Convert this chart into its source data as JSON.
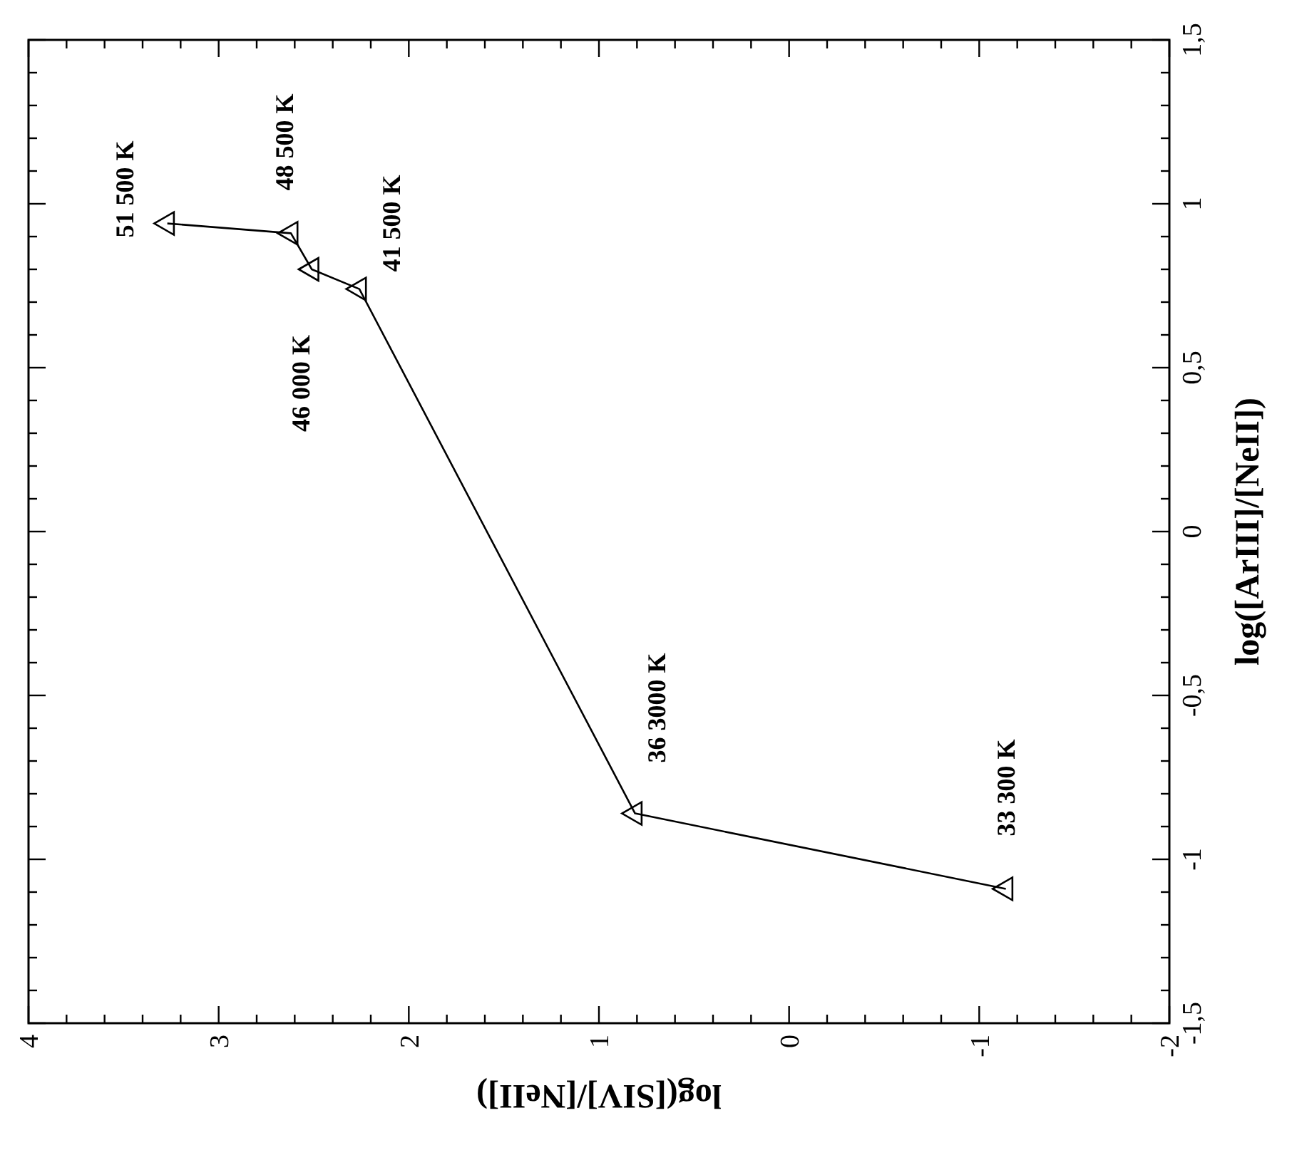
{
  "chart_data": {
    "type": "line",
    "xlabel": "log([SIV]/[NeII])",
    "ylabel": "log([ArIII]/[NeII])",
    "xlim": [
      4,
      -2
    ],
    "ylim": [
      -1.5,
      1.5
    ],
    "yticks": [
      {
        "value": -1.5,
        "label": "-1,5"
      },
      {
        "value": -1.4,
        "label": null
      },
      {
        "value": -1.3,
        "label": null
      },
      {
        "value": -1.2,
        "label": null
      },
      {
        "value": -1.1,
        "label": null
      },
      -1,
      {
        "value": -0.9,
        "label": null
      },
      {
        "value": -0.8,
        "label": null
      },
      {
        "value": -0.7,
        "label": null
      },
      {
        "value": -0.6,
        "label": null
      },
      {
        "value": -0.5,
        "label": "-0,5"
      },
      {
        "value": -0.4,
        "label": null
      },
      {
        "value": -0.3,
        "label": null
      },
      {
        "value": -0.2,
        "label": null
      },
      {
        "value": -0.1,
        "label": null
      },
      0,
      {
        "value": 0.1,
        "label": null
      },
      {
        "value": 0.2,
        "label": null
      },
      {
        "value": 0.3,
        "label": null
      },
      {
        "value": 0.4,
        "label": null
      },
      {
        "value": 0.5,
        "label": "0,5"
      },
      {
        "value": 0.6,
        "label": null
      },
      {
        "value": 0.7,
        "label": null
      },
      {
        "value": 0.8,
        "label": null
      },
      {
        "value": 0.9,
        "label": null
      },
      1,
      {
        "value": 1.1,
        "label": null
      },
      {
        "value": 1.2,
        "label": null
      },
      {
        "value": 1.3,
        "label": null
      },
      {
        "value": 1.4,
        "label": null
      },
      {
        "value": 1.5,
        "label": "1,5"
      }
    ],
    "xticks": [
      4,
      {
        "value": 3.8,
        "label": null
      },
      {
        "value": 3.6,
        "label": null
      },
      {
        "value": 3.4,
        "label": null
      },
      {
        "value": 3.2,
        "label": null
      },
      3,
      {
        "value": 2.8,
        "label": null
      },
      {
        "value": 2.6,
        "label": null
      },
      {
        "value": 2.4,
        "label": null
      },
      {
        "value": 2.2,
        "label": null
      },
      2,
      {
        "value": 1.8,
        "label": null
      },
      {
        "value": 1.6,
        "label": null
      },
      {
        "value": 1.4,
        "label": null
      },
      {
        "value": 1.2,
        "label": null
      },
      1,
      {
        "value": 0.8,
        "label": null
      },
      {
        "value": 0.6,
        "label": null
      },
      {
        "value": 0.4,
        "label": null
      },
      {
        "value": 0.2,
        "label": null
      },
      0,
      {
        "value": -0.2,
        "label": null
      },
      {
        "value": -0.4,
        "label": null
      },
      {
        "value": -0.6,
        "label": null
      },
      {
        "value": -0.8,
        "label": null
      },
      -1,
      {
        "value": -1.2,
        "label": null
      },
      {
        "value": -1.4,
        "label": null
      },
      {
        "value": -1.6,
        "label": null
      },
      {
        "value": -1.8,
        "label": null
      },
      -2
    ],
    "grid": false,
    "marker": "triangle",
    "line_style": "solid",
    "series": [
      {
        "color": "#000000",
        "x": [
          3.27,
          2.62,
          2.51,
          2.26,
          0.81,
          -1.14
        ],
        "values": [
          0.94,
          0.91,
          0.8,
          0.74,
          -0.86,
          -1.09
        ]
      }
    ],
    "annotations": [
      {
        "text": "51 500 K",
        "x": 3.27,
        "y": 0.94
      },
      {
        "text": "48 500 K",
        "x": 2.62,
        "y": 0.91
      },
      {
        "text": "46 000 K",
        "x": 2.51,
        "y": 0.8
      },
      {
        "text": "41 500 K",
        "x": 2.26,
        "y": 0.74
      },
      {
        "text": "36 3000 K",
        "x": 0.81,
        "y": -0.86
      },
      {
        "text": "33 300 K",
        "x": -1.14,
        "y": -1.09
      }
    ]
  }
}
